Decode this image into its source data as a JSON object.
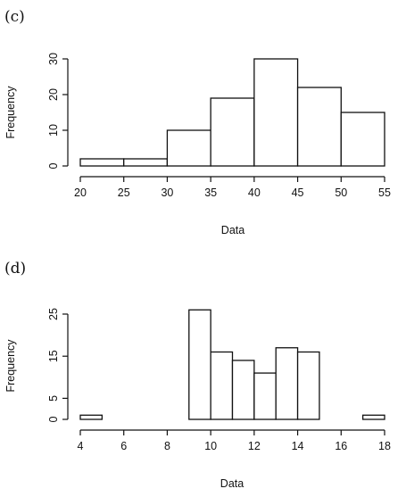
{
  "chart_data": [
    {
      "type": "bar",
      "panel_label": "(c)",
      "xlabel": "Data",
      "ylabel": "Frequency",
      "bin_edges": [
        20,
        25,
        30,
        35,
        40,
        45,
        50,
        55
      ],
      "values": [
        2,
        2,
        10,
        19,
        30,
        22,
        15
      ],
      "xlim": [
        20,
        55
      ],
      "ylim": [
        0,
        30
      ],
      "x_ticks": [
        20,
        25,
        30,
        35,
        40,
        45,
        50,
        55
      ],
      "y_ticks": [
        0,
        10,
        20,
        30
      ],
      "grid": false,
      "colors": {
        "bar_fill": "#ffffff",
        "bar_stroke": "#111111"
      }
    },
    {
      "type": "bar",
      "panel_label": "(d)",
      "xlabel": "Data",
      "ylabel": "Frequency",
      "bin_edges": [
        4,
        5,
        6,
        7,
        8,
        9,
        10,
        11,
        12,
        13,
        14,
        15,
        16,
        17,
        18
      ],
      "values": [
        1,
        0,
        0,
        0,
        0,
        26,
        16,
        14,
        11,
        17,
        16,
        0,
        0,
        1
      ],
      "xlim": [
        4,
        18
      ],
      "ylim": [
        0,
        25
      ],
      "x_ticks": [
        4,
        6,
        8,
        10,
        12,
        14,
        16,
        18
      ],
      "y_ticks": [
        0,
        5,
        15,
        25
      ],
      "grid": false,
      "colors": {
        "bar_fill": "#ffffff",
        "bar_stroke": "#111111"
      }
    }
  ]
}
